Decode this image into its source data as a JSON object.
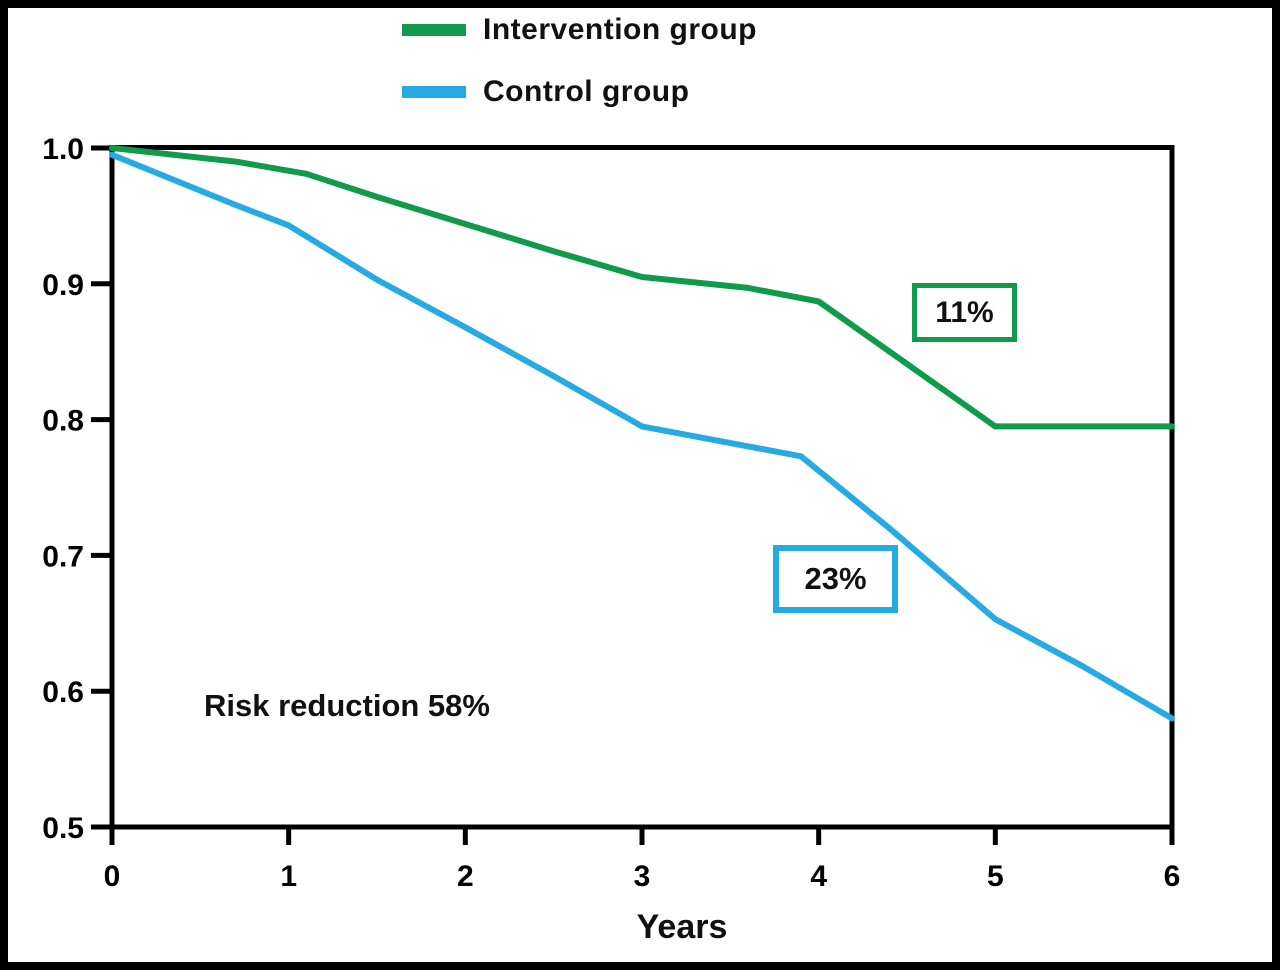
{
  "page": {
    "background": "#ffffff",
    "border_color": "#000000"
  },
  "chart_data": {
    "type": "line",
    "title": "",
    "xlabel": "Years",
    "ylabel": "",
    "xlim": [
      0,
      6
    ],
    "ylim": [
      0.5,
      1.0
    ],
    "x_tick_labels": [
      "0",
      "1",
      "2",
      "3",
      "4",
      "5",
      "6"
    ],
    "y_tick_labels": [
      "1.0",
      "0.9",
      "0.8",
      "0.7",
      "0.6",
      "0.5"
    ],
    "grid": false,
    "legend_position": "top",
    "axis_color": "#000000",
    "series": [
      {
        "name": "Intervention group",
        "color": "#0F9B4A",
        "points": [
          [
            0,
            1.0
          ],
          [
            0.7,
            0.99
          ],
          [
            1.1,
            0.981
          ],
          [
            1.5,
            0.964
          ],
          [
            2,
            0.944
          ],
          [
            2.5,
            0.924
          ],
          [
            3,
            0.905
          ],
          [
            3.6,
            0.897
          ],
          [
            4,
            0.887
          ],
          [
            5,
            0.795
          ],
          [
            6,
            0.795
          ]
        ]
      },
      {
        "name": "Control group",
        "color": "#27AAE1",
        "points": [
          [
            0,
            0.995
          ],
          [
            0.7,
            0.958
          ],
          [
            1,
            0.943
          ],
          [
            1.5,
            0.903
          ],
          [
            2,
            0.868
          ],
          [
            2.5,
            0.832
          ],
          [
            3,
            0.795
          ],
          [
            3.9,
            0.773
          ],
          [
            4.4,
            0.72
          ],
          [
            5,
            0.653
          ],
          [
            5.5,
            0.618
          ],
          [
            6,
            0.58
          ]
        ]
      }
    ],
    "annotations": [
      {
        "text": "11%",
        "box_color": "#0F9B4A",
        "series": "Intervention group"
      },
      {
        "text": "23%",
        "box_color": "#27AAE1",
        "series": "Control group"
      },
      {
        "text": "Risk reduction 58%",
        "box_color": null,
        "series": null
      }
    ]
  }
}
